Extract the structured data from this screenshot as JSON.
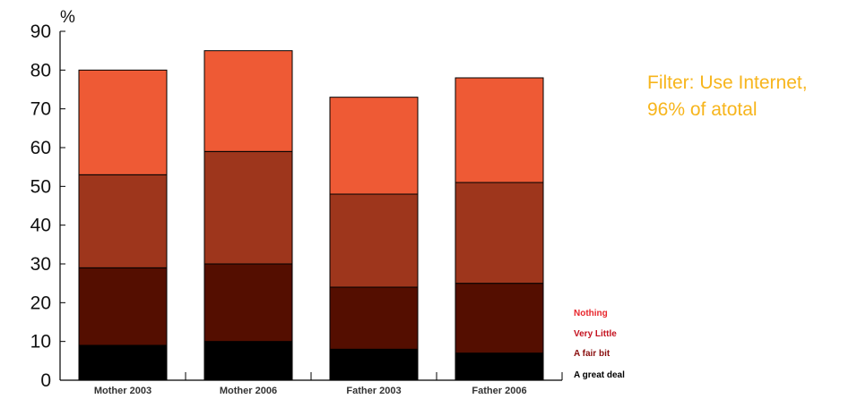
{
  "chart_data": {
    "type": "bar",
    "stacked": true,
    "y_unit": "%",
    "ylim": [
      0,
      90
    ],
    "y_ticks": [
      0,
      10,
      20,
      30,
      40,
      50,
      60,
      70,
      80,
      90
    ],
    "grid": false,
    "categories": [
      "Mother 2003",
      "Mother 2006",
      "Father 2003",
      "Father 2006"
    ],
    "series": [
      {
        "name": "A great deal",
        "color": "#000000",
        "values": [
          9,
          10,
          8,
          7
        ]
      },
      {
        "name": "A fair bit",
        "color": "#540e00",
        "values": [
          20,
          20,
          16,
          18
        ]
      },
      {
        "name": "Very Little",
        "color": "#9e361c",
        "values": [
          24,
          29,
          24,
          26
        ]
      },
      {
        "name": "Nothing",
        "color": "#ee5a35",
        "values": [
          27,
          26,
          25,
          27
        ]
      }
    ],
    "legend": {
      "placement": "bottom-right",
      "label_colors": {
        "Nothing": "#e8262c",
        "Very Little": "#c4121f",
        "A fair bit": "#8a0f0f",
        "A great deal": "#000000"
      }
    }
  },
  "annotation": {
    "line1": "Filter: Use Internet,",
    "line2": "96% of atotal",
    "color": "#f7b51c"
  }
}
